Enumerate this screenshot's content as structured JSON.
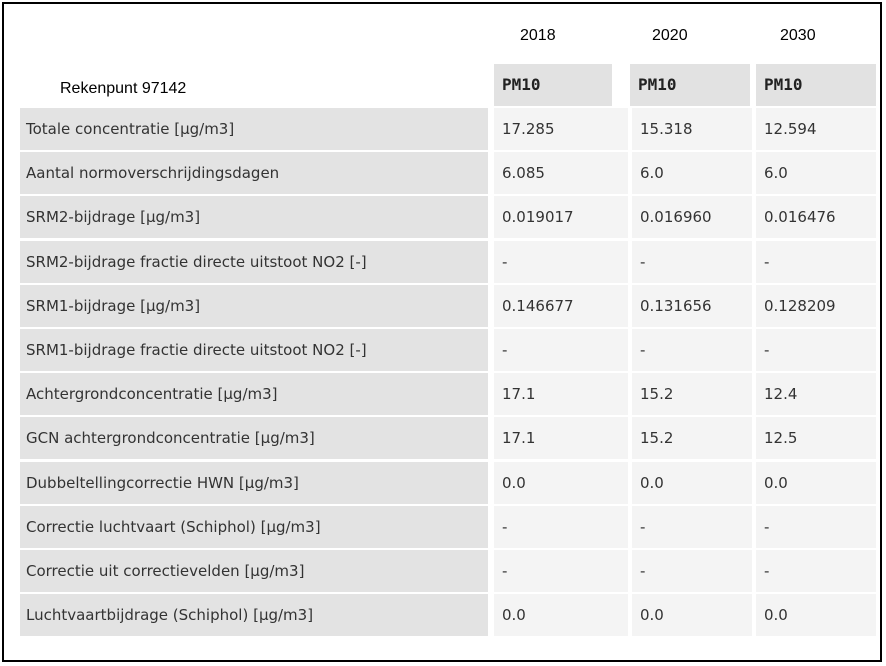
{
  "years": [
    "2018",
    "2020",
    "2030"
  ],
  "rekenpunt": "Rekenpunt 97142",
  "pollutant_headers": [
    "PM10",
    "PM10",
    "PM10"
  ],
  "rows": [
    {
      "label": "Totale concentratie [µg/m3]",
      "values": [
        "17.285",
        "15.318",
        "12.594"
      ]
    },
    {
      "label": "Aantal normoverschrijdingsdagen",
      "values": [
        "6.085",
        "6.0",
        "6.0"
      ]
    },
    {
      "label": "SRM2-bijdrage [µg/m3]",
      "values": [
        "0.019017",
        "0.016960",
        "0.016476"
      ]
    },
    {
      "label": "SRM2-bijdrage fractie directe uitstoot NO2 [-]",
      "values": [
        "-",
        "-",
        "-"
      ]
    },
    {
      "label": "SRM1-bijdrage [µg/m3]",
      "values": [
        "0.146677",
        "0.131656",
        "0.128209"
      ]
    },
    {
      "label": "SRM1-bijdrage fractie directe uitstoot NO2 [-]",
      "values": [
        "-",
        "-",
        "-"
      ]
    },
    {
      "label": "Achtergrondconcentratie [µg/m3]",
      "values": [
        "17.1",
        "15.2",
        "12.4"
      ]
    },
    {
      "label": "GCN achtergrondconcentratie [µg/m3]",
      "values": [
        "17.1",
        "15.2",
        "12.5"
      ]
    },
    {
      "label": "Dubbeltellingcorrectie HWN [µg/m3]",
      "values": [
        "0.0",
        "0.0",
        "0.0"
      ]
    },
    {
      "label": "Correctie luchtvaart (Schiphol) [µg/m3]",
      "values": [
        "-",
        "-",
        "-"
      ]
    },
    {
      "label": "Correctie uit correctievelden [µg/m3]",
      "values": [
        "-",
        "-",
        "-"
      ]
    },
    {
      "label": "Luchtvaartbijdrage (Schiphol) [µg/m3]",
      "values": [
        "0.0",
        "0.0",
        "0.0"
      ]
    }
  ]
}
